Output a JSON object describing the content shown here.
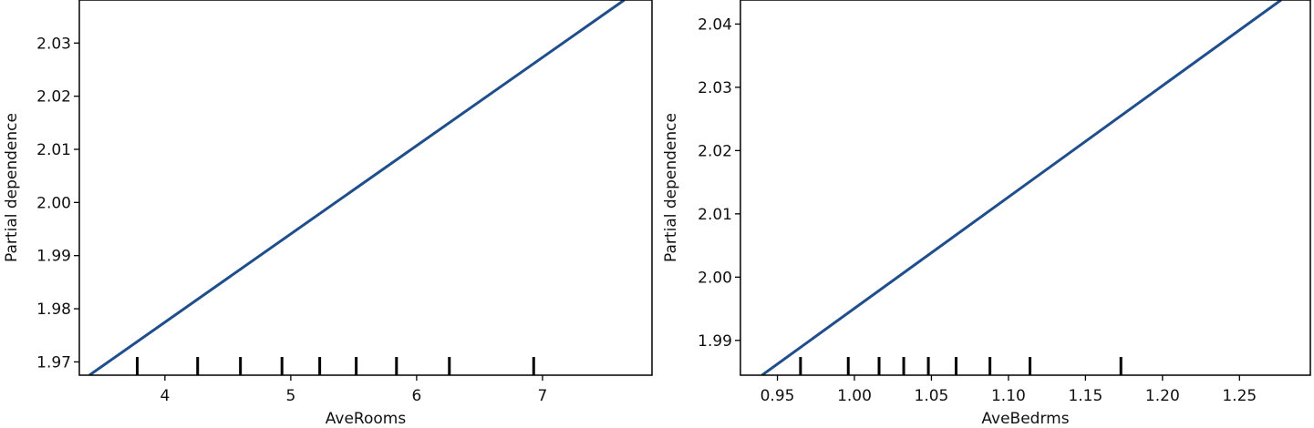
{
  "chart_data": [
    {
      "type": "line",
      "title": "",
      "xlabel": "AveRooms",
      "ylabel": "Partial dependence",
      "xlim": [
        3.32,
        7.87
      ],
      "ylim": [
        1.9675,
        2.0381
      ],
      "xticks": [
        4,
        5,
        6,
        7
      ],
      "xtick_labels": [
        "4",
        "5",
        "6",
        "7"
      ],
      "yticks": [
        1.97,
        1.98,
        1.99,
        2.0,
        2.01,
        2.02,
        2.03
      ],
      "ytick_labels": [
        "1.97",
        "1.98",
        "1.99",
        "2.00",
        "2.01",
        "2.02",
        "2.03"
      ],
      "grid": false,
      "series": [
        {
          "x": [
            3.4,
            7.65
          ],
          "y": [
            1.9675,
            2.0381
          ]
        }
      ],
      "deciles": [
        3.78,
        4.26,
        4.6,
        4.93,
        5.23,
        5.52,
        5.84,
        6.26,
        6.93
      ]
    },
    {
      "type": "line",
      "title": "",
      "xlabel": "AveBedrms",
      "ylabel": "Partial dependence",
      "xlim": [
        0.926,
        1.296
      ],
      "ylim": [
        1.9845,
        2.0438
      ],
      "xticks": [
        0.95,
        1.0,
        1.05,
        1.1,
        1.15,
        1.2,
        1.25
      ],
      "xtick_labels": [
        "0.95",
        "1.00",
        "1.05",
        "1.10",
        "1.15",
        "1.20",
        "1.25"
      ],
      "yticks": [
        1.99,
        2.0,
        2.01,
        2.02,
        2.03,
        2.04
      ],
      "ytick_labels": [
        "1.99",
        "2.00",
        "2.01",
        "2.02",
        "2.03",
        "2.04"
      ],
      "grid": false,
      "series": [
        {
          "x": [
            0.94,
            1.277
          ],
          "y": [
            1.9845,
            2.0438
          ]
        }
      ],
      "deciles": [
        0.965,
        0.996,
        1.016,
        1.032,
        1.048,
        1.066,
        1.088,
        1.114,
        1.173
      ]
    }
  ],
  "colors": {
    "line": "#1f4e8c",
    "axes": "#000000",
    "deciles": "#000000"
  }
}
